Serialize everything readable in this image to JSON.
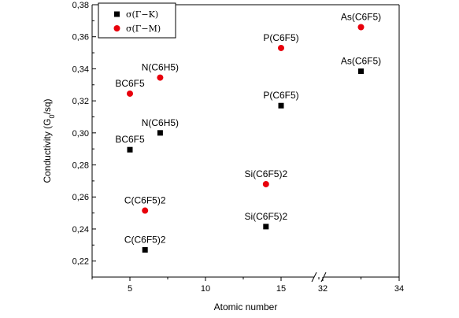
{
  "chart_data": {
    "type": "scatter",
    "xlabel": "Atomic number",
    "ylabel_main": "Conductivity (G",
    "ylabel_sub": "0",
    "ylabel_tail": "/sq)",
    "ylim": [
      0.21,
      0.38
    ],
    "yticks": [
      "0,22",
      "0,24",
      "0,26",
      "0,28",
      "0,30",
      "0,32",
      "0,34",
      "0,36",
      "0,38"
    ],
    "ytick_values": [
      0.22,
      0.24,
      0.26,
      0.28,
      0.3,
      0.32,
      0.34,
      0.36,
      0.38
    ],
    "x_segments": [
      {
        "range": [
          2.5,
          17.5
        ],
        "ticks": [
          "5",
          "10",
          "15"
        ],
        "tick_values": [
          5,
          10,
          15
        ]
      },
      {
        "range": [
          32,
          34
        ],
        "ticks": [
          "32",
          "34"
        ],
        "tick_values": [
          32,
          34
        ]
      }
    ],
    "legend": {
      "placement": "top-left"
    },
    "series": [
      {
        "name": "σ(Γ−K)",
        "marker": "square",
        "color": "#000000",
        "points": [
          {
            "x": 5,
            "y": 0.2895,
            "label": "BC6F5"
          },
          {
            "x": 6,
            "y": 0.227,
            "label": "C(C6F5)2"
          },
          {
            "x": 7,
            "y": 0.3,
            "label": "N(C6H5)"
          },
          {
            "x": 14,
            "y": 0.2415,
            "label": "Si(C6F5)2"
          },
          {
            "x": 15,
            "y": 0.317,
            "label": "P(C6F5)"
          },
          {
            "x": 33,
            "y": 0.3385,
            "label": "As(C6F5)"
          }
        ]
      },
      {
        "name": "σ(Γ−M)",
        "marker": "circle",
        "color": "#e8000b",
        "points": [
          {
            "x": 5,
            "y": 0.3245,
            "label": "BC6F5"
          },
          {
            "x": 6,
            "y": 0.2515,
            "label": "C(C6F5)2"
          },
          {
            "x": 7,
            "y": 0.3345,
            "label": "N(C6H5)"
          },
          {
            "x": 14,
            "y": 0.268,
            "label": "Si(C6F5)2"
          },
          {
            "x": 15,
            "y": 0.353,
            "label": "P(C6F5)"
          },
          {
            "x": 33,
            "y": 0.366,
            "label": "As(C6F5)"
          }
        ]
      }
    ]
  }
}
